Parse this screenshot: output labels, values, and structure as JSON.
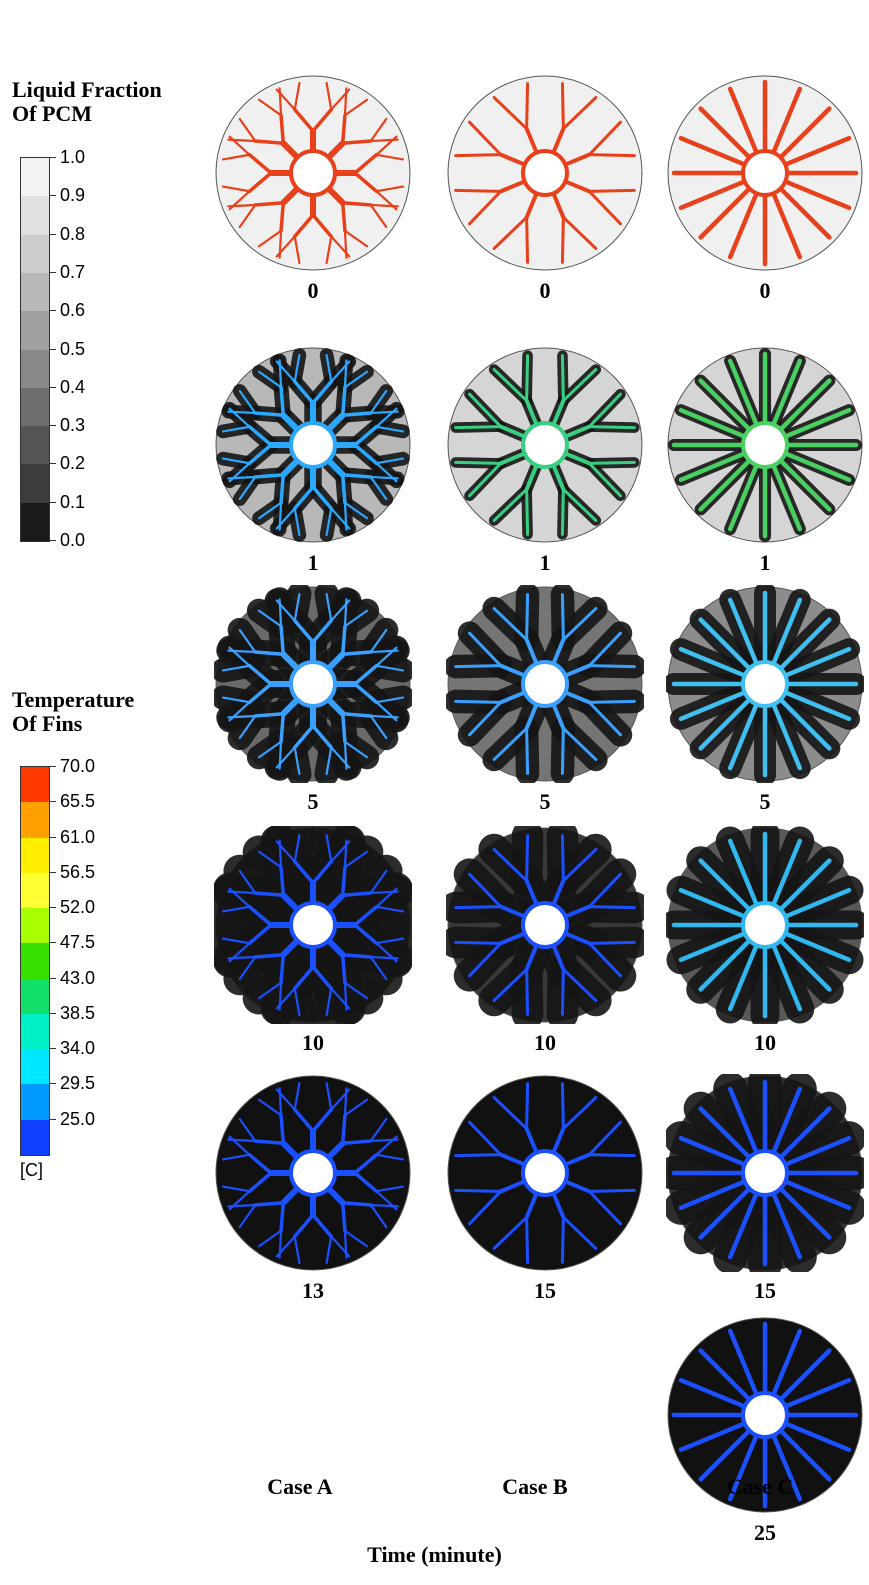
{
  "legends": {
    "liquid_fraction": {
      "title_line1": "Liquid Fraction",
      "title_line2": "Of PCM",
      "ticks": [
        "1.0",
        "0.9",
        "0.8",
        "0.7",
        "0.6",
        "0.5",
        "0.4",
        "0.3",
        "0.2",
        "0.1",
        "0.0"
      ],
      "colors": [
        "#f2f2f2",
        "#e0e0e0",
        "#cdcdcd",
        "#b8b8b8",
        "#a0a0a0",
        "#888888",
        "#6e6e6e",
        "#555555",
        "#3c3c3c",
        "#1a1a1a"
      ]
    },
    "temperature": {
      "title_line1": "Temperature",
      "title_line2": "Of Fins",
      "ticks": [
        "70.0",
        "65.5",
        "61.0",
        "56.5",
        "52.0",
        "47.5",
        "43.0",
        "38.5",
        "34.0",
        "29.5",
        "25.0"
      ],
      "colors": [
        "#ff3a00",
        "#ffa000",
        "#ffee00",
        "#ffff33",
        "#a8ff00",
        "#38e000",
        "#12e06a",
        "#00f0c8",
        "#00e8ff",
        "#0099ff",
        "#1040ff"
      ],
      "unit": "[C]"
    }
  },
  "panels": [
    {
      "case": "A",
      "time": "0",
      "fin": "#e8401a",
      "melt": 0.0
    },
    {
      "case": "B",
      "time": "0",
      "fin": "#e8401a",
      "melt": 0.0
    },
    {
      "case": "C",
      "time": "0",
      "fin": "#e8401a",
      "melt": 0.0
    },
    {
      "case": "A",
      "time": "1",
      "fin": "#2aa8ff",
      "melt": 0.25
    },
    {
      "case": "B",
      "time": "1",
      "fin": "#38d080",
      "melt": 0.12
    },
    {
      "case": "C",
      "time": "1",
      "fin": "#48d060",
      "melt": 0.12
    },
    {
      "case": "A",
      "time": "5",
      "fin": "#3aa0ff",
      "melt": 0.6
    },
    {
      "case": "B",
      "time": "5",
      "fin": "#3aa0ff",
      "melt": 0.55
    },
    {
      "case": "C",
      "time": "5",
      "fin": "#40c0f0",
      "melt": 0.45
    },
    {
      "case": "A",
      "time": "10",
      "fin": "#1a50ff",
      "melt": 0.88
    },
    {
      "case": "B",
      "time": "10",
      "fin": "#1a50ff",
      "melt": 0.82
    },
    {
      "case": "C",
      "time": "10",
      "fin": "#30b8f0",
      "melt": 0.68
    },
    {
      "case": "A",
      "time": "13",
      "fin": "#1a50ff",
      "melt": 1.0
    },
    {
      "case": "B",
      "time": "15",
      "fin": "#1a50ff",
      "melt": 1.0
    },
    {
      "case": "C",
      "time": "15",
      "fin": "#1a50ff",
      "melt": 0.85
    },
    {
      "case": "C",
      "time": "25",
      "fin": "#1a50ff",
      "melt": 1.0
    }
  ],
  "cases": [
    "Case A",
    "Case B",
    "Case C"
  ],
  "axis_title": "Time (minute)"
}
